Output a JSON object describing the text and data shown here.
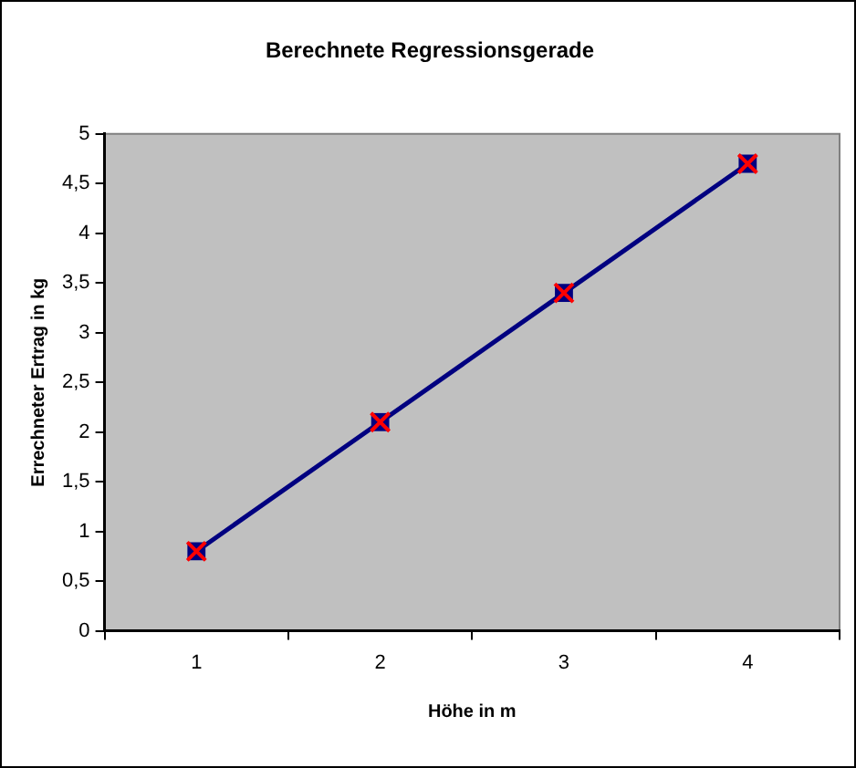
{
  "chart_data": {
    "type": "line",
    "title": "Berechnete Regressionsgerade",
    "xlabel": "Höhe in m",
    "ylabel": "Errechneter Ertrag in kg",
    "categories": [
      "1",
      "2",
      "3",
      "4"
    ],
    "series": [
      {
        "color": "#000080",
        "values": [
          0.8,
          2.1,
          3.4,
          4.7
        ]
      }
    ],
    "ylim": [
      0,
      5
    ],
    "yticks": [
      0,
      {
        "value": 0.5,
        "label": "0,5"
      },
      1,
      {
        "value": 1.5,
        "label": "1,5"
      },
      2,
      {
        "value": 2.5,
        "label": "2,5"
      },
      3,
      {
        "value": 3.5,
        "label": "3,5"
      },
      4,
      {
        "value": 4.5,
        "label": "4,5"
      },
      5
    ],
    "grid": false,
    "legend": false,
    "marker": "square",
    "line_style": "solid"
  }
}
